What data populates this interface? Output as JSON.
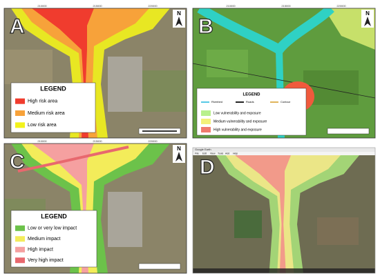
{
  "panels": [
    {
      "label": "A",
      "north": "N",
      "coords": [
        "210000",
        "215000",
        "220000"
      ],
      "legend": {
        "title": "LEGEND",
        "items": [
          {
            "label": "High risk area",
            "color": "#f03c2e"
          },
          {
            "label": "Medium risk area",
            "color": "#f7a23a"
          },
          {
            "label": "Low risk area",
            "color": "#f2f21c"
          }
        ]
      }
    },
    {
      "label": "B",
      "north": "N",
      "coords": [
        "210000",
        "215000",
        "220000"
      ],
      "legend": {
        "title": "LEGEND",
        "line_items": [
          {
            "label": "Riverbed",
            "color": "#55c8e6"
          },
          {
            "label": "Roads",
            "color": "#222222"
          },
          {
            "label": "Contour",
            "color": "#e0b35a"
          }
        ],
        "items": [
          {
            "label": "Low vulnerability and exposure",
            "color": "#b8f08c"
          },
          {
            "label": "Medium vulnerability and exposure",
            "color": "#f3f07a"
          },
          {
            "label": "High vulnerability and exposure",
            "color": "#f07a6e"
          }
        ]
      }
    },
    {
      "label": "C",
      "north": "N",
      "coords": [
        "210000",
        "215000",
        "220000"
      ],
      "legend": {
        "title": "LEGEND",
        "items": [
          {
            "label": "Low or very low impact",
            "color": "#6cc24a"
          },
          {
            "label": "Medium impact",
            "color": "#f3ec5a"
          },
          {
            "label": "High impact",
            "color": "#f5a0a0"
          },
          {
            "label": "Very high impact",
            "color": "#e8686e"
          }
        ]
      }
    },
    {
      "label": "D",
      "window_title": "Google Earth",
      "menu": [
        "File",
        "Edit",
        "View",
        "Tools",
        "Add",
        "Help"
      ]
    }
  ]
}
